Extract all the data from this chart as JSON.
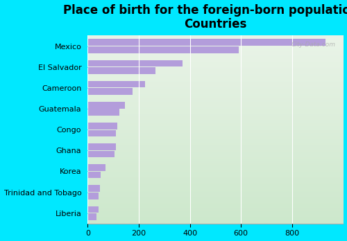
{
  "title": "Place of birth for the foreign-born population -\nCountries",
  "categories": [
    "Mexico",
    "El Salvador",
    "Cameroon",
    "Guatemala",
    "Congo",
    "Ghana",
    "Korea",
    "Trinidad and Tobago",
    "Liberia"
  ],
  "values1": [
    930,
    370,
    225,
    145,
    115,
    110,
    70,
    48,
    43
  ],
  "values2": [
    590,
    265,
    175,
    125,
    110,
    105,
    52,
    43,
    35
  ],
  "bar_color": "#b39ddb",
  "bg_color": "#00e8ff",
  "plot_bg_top": "#eaf4e8",
  "plot_bg_bottom": "#cde8cc",
  "xlim": [
    0,
    1000
  ],
  "xticks": [
    0,
    200,
    400,
    600,
    800
  ],
  "bar_height": 0.32,
  "bar_gap": 0.03,
  "title_fontsize": 12,
  "tick_fontsize": 8,
  "watermark": "City-Data.com"
}
